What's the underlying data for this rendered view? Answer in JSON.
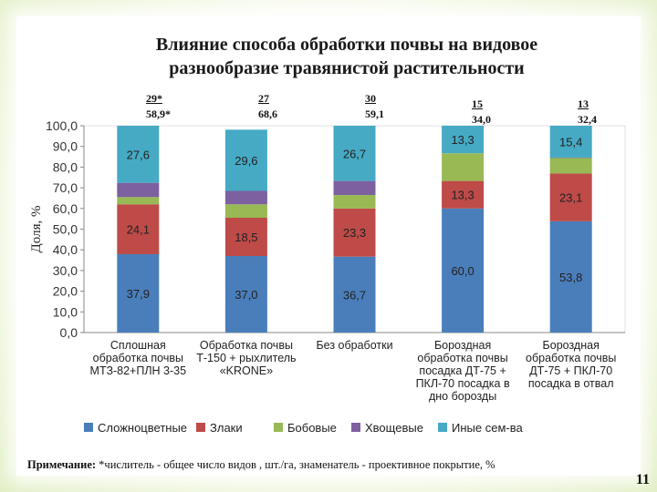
{
  "title_line1": "Влияние способа обработки почвы на видовое",
  "title_line2": "разнообразие травянистой растительности",
  "fractions": [
    {
      "num": "29*",
      "den": "58,9*"
    },
    {
      "num": "27",
      "den": "68,6"
    },
    {
      "num": "30",
      "den": "59,1"
    },
    {
      "num": "15",
      "den": "34,0"
    },
    {
      "num": "13",
      "den": "32,4"
    }
  ],
  "note": {
    "label": "Примечание:",
    "text": "*числитель - общее число видов , шт./га, знаменатель - проективное покрытие, %"
  },
  "page_number": "11",
  "chart_data": {
    "type": "bar",
    "stacked": true,
    "ylabel": "Доля, %",
    "ylim": [
      0,
      100
    ],
    "yticks": [
      "0,0",
      "10,0",
      "20,0",
      "30,0",
      "40,0",
      "50,0",
      "60,0",
      "70,0",
      "80,0",
      "90,0",
      "100,0"
    ],
    "categories": [
      [
        "Сплошная",
        "обработка почвы",
        "МТЗ-82+ПЛН 3-35"
      ],
      [
        "Обработка почвы",
        "Т-150 + рыхлитель",
        "«KRONE»"
      ],
      [
        "Без обработки"
      ],
      [
        "Бороздная",
        "обработка почвы",
        "посадка ДТ-75 +",
        "ПКЛ-70 посадка в",
        "дно борозды"
      ],
      [
        "Бороздная",
        "обработка почвы",
        "ДТ-75 + ПКЛ-70",
        "посадка в отвал"
      ]
    ],
    "series": [
      {
        "name": "Сложноцветные",
        "color": "#4a7ebb",
        "values": [
          37.9,
          37.0,
          36.7,
          60.0,
          53.8
        ],
        "labels": [
          "37,9",
          "37,0",
          "36,7",
          "60,0",
          "53,8"
        ]
      },
      {
        "name": "Злаки",
        "color": "#be4b48",
        "values": [
          24.1,
          18.5,
          23.3,
          13.3,
          23.1
        ],
        "labels": [
          "24,1",
          "18,5",
          "23,3",
          "13,3",
          "23,1"
        ]
      },
      {
        "name": "Бобовые",
        "color": "#98b954",
        "values": [
          3.5,
          6.5,
          6.5,
          13.4,
          7.5
        ],
        "labels": [
          "",
          "",
          "",
          "",
          ""
        ]
      },
      {
        "name": "Хвощевые",
        "color": "#7d60a0",
        "values": [
          6.9,
          6.5,
          6.8,
          0,
          0.2
        ],
        "labels": [
          "",
          "",
          "",
          "",
          ""
        ]
      },
      {
        "name": "Иные сем-ва",
        "color": "#46aac5",
        "values": [
          27.6,
          29.6,
          26.7,
          13.3,
          15.4
        ],
        "labels": [
          "27,6",
          "29,6",
          "26,7",
          "13,3",
          "15,4"
        ]
      }
    ],
    "legend_position": "bottom",
    "grid": false
  }
}
